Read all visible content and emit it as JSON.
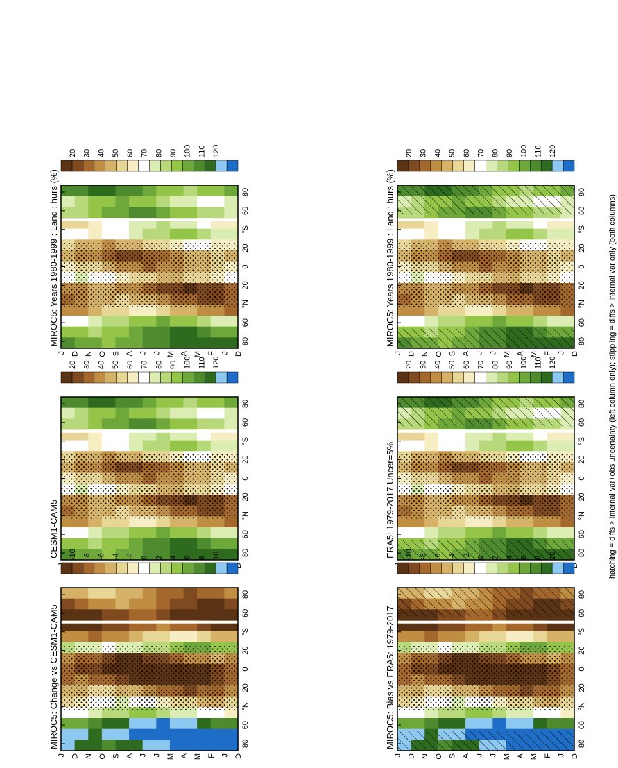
{
  "footnote": "hatching = diffs > internal var+obs uncertainty (left column only); stippling = diffs > internal var only (both columns)",
  "chart_data": [
    {
      "type": "heatmap",
      "id": "p_left_top",
      "title": "MIROC5: Years 1980-1999 : Land : hurs (%)",
      "xlabel": "",
      "ylabel": "",
      "x_ticks": [
        "D",
        "J",
        "F",
        "M",
        "A",
        "M",
        "J",
        "J",
        "A",
        "S",
        "O",
        "N",
        "D",
        "J"
      ],
      "y_ticks": [
        "80",
        "60",
        "°N",
        "20",
        "0",
        "20",
        "°S",
        "60",
        "80"
      ],
      "colorbar": {
        "labels": [
          "120",
          "110",
          "100",
          "90",
          "80",
          "70",
          "60",
          "50",
          "40",
          "30",
          "20"
        ]
      },
      "palette": "abs",
      "hatched": true,
      "stippled": true
    },
    {
      "type": "heatmap",
      "id": "p_right_top",
      "title": "MIROC5: Years 1980-1999 : Land : hurs (%)",
      "xlabel": "",
      "ylabel": "",
      "x_ticks": [
        "D",
        "J",
        "F",
        "M",
        "A",
        "M",
        "J",
        "J",
        "A",
        "S",
        "O",
        "N",
        "D",
        "J"
      ],
      "y_ticks": [
        "80",
        "60",
        "°N",
        "20",
        "0",
        "20",
        "°S",
        "60",
        "80"
      ],
      "colorbar": {
        "labels": [
          "120",
          "110",
          "100",
          "90",
          "80",
          "70",
          "60",
          "50",
          "40",
          "30",
          "20"
        ]
      },
      "palette": "abs",
      "hatched": false,
      "stippled": true
    },
    {
      "type": "heatmap",
      "id": "p_left_mid",
      "title": "ERA5: 1979-2017 Uncer=5%",
      "xlabel": "",
      "ylabel": "",
      "x_ticks": [
        "D",
        "J",
        "F",
        "M",
        "A",
        "M",
        "J",
        "J",
        "A",
        "S",
        "O",
        "N",
        "D",
        "J"
      ],
      "y_ticks": [
        "80",
        "60",
        "°N",
        "20",
        "0",
        "20",
        "°S",
        "60",
        "80"
      ],
      "colorbar": {
        "labels": [
          "120",
          "110",
          "100",
          "90",
          "80",
          "70",
          "60",
          "50",
          "40",
          "30",
          "20"
        ]
      },
      "palette": "abs",
      "hatched": true,
      "stippled": true
    },
    {
      "type": "heatmap",
      "id": "p_right_mid",
      "title": "CESM1-CAM5",
      "xlabel": "",
      "ylabel": "",
      "x_ticks": [
        "D",
        "J",
        "F",
        "M",
        "A",
        "M",
        "J",
        "J",
        "A",
        "S",
        "O",
        "N",
        "D",
        "J"
      ],
      "y_ticks": [
        "80",
        "60",
        "°N",
        "20",
        "0",
        "20",
        "°S",
        "60",
        "80"
      ],
      "colorbar": {
        "labels": [
          "120",
          "110",
          "100",
          "90",
          "80",
          "70",
          "60",
          "50",
          "40",
          "30",
          "20"
        ]
      },
      "palette": "abs",
      "hatched": false,
      "stippled": true
    },
    {
      "type": "heatmap",
      "id": "p_left_bot",
      "title": "MIROC5: Bias vs ERA5: 1979-2017",
      "xlabel": "",
      "ylabel": "",
      "x_ticks": [
        "D",
        "J",
        "F",
        "M",
        "A",
        "M",
        "J",
        "J",
        "A",
        "S",
        "O",
        "N",
        "D",
        "J"
      ],
      "y_ticks": [
        "80",
        "60",
        "°N",
        "20",
        "0",
        "20",
        "°S",
        "60",
        "80"
      ],
      "colorbar": {
        "labels": [
          "10",
          "8",
          "6",
          "4",
          "2",
          "0",
          "-2",
          "-4",
          "-6",
          "-8",
          "-10"
        ]
      },
      "palette": "diff",
      "hatched": true,
      "stippled": true
    },
    {
      "type": "heatmap",
      "id": "p_right_bot",
      "title": "MIROC5: Change vs CESM1-CAM5",
      "xlabel": "",
      "ylabel": "",
      "x_ticks": [
        "D",
        "J",
        "F",
        "M",
        "A",
        "M",
        "J",
        "J",
        "A",
        "S",
        "O",
        "N",
        "D",
        "J"
      ],
      "y_ticks": [
        "80",
        "60",
        "°N",
        "20",
        "0",
        "20",
        "°S",
        "60",
        "80"
      ],
      "colorbar": {
        "labels": [
          "10",
          "8",
          "6",
          "4",
          "2",
          "0",
          "-2",
          "-4",
          "-6",
          "-8",
          "-10"
        ]
      },
      "palette": "diff",
      "hatched": false,
      "stippled": true
    }
  ]
}
